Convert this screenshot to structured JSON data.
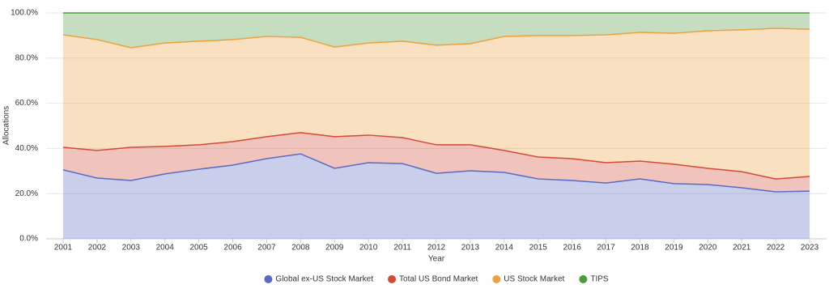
{
  "chart_data": {
    "type": "stacked_area",
    "x_label": "Year",
    "y_label": "Allocations",
    "categories": [
      "2001",
      "2002",
      "2003",
      "2004",
      "2005",
      "2006",
      "2007",
      "2008",
      "2009",
      "2010",
      "2011",
      "2012",
      "2013",
      "2014",
      "2015",
      "2016",
      "2017",
      "2018",
      "2019",
      "2020",
      "2021",
      "2022",
      "2023"
    ],
    "series": [
      {
        "name": "Global ex-US Stock Market",
        "color": "#5a6ac2",
        "values": [
          30.5,
          26.9,
          25.8,
          28.7,
          30.8,
          32.6,
          35.5,
          37.6,
          31.2,
          33.7,
          33.3,
          29.0,
          30.1,
          29.4,
          26.5,
          25.8,
          24.7,
          26.5,
          24.4,
          24.0,
          22.6,
          20.8,
          21.1
        ]
      },
      {
        "name": "Total US Bond Market",
        "color": "#d14b35",
        "values": [
          10.0,
          12.2,
          14.7,
          12.2,
          10.8,
          10.4,
          9.7,
          9.4,
          14.0,
          12.2,
          11.5,
          12.6,
          11.5,
          9.7,
          9.7,
          9.7,
          9.0,
          7.9,
          8.6,
          7.2,
          7.1,
          5.7,
          6.5
        ]
      },
      {
        "name": "US Stock Market",
        "color": "#eba23f",
        "values": [
          49.8,
          49.1,
          44.1,
          45.8,
          45.9,
          45.2,
          44.4,
          42.2,
          39.7,
          40.8,
          42.7,
          44.1,
          44.8,
          50.5,
          53.8,
          54.5,
          56.6,
          57.0,
          58.0,
          60.9,
          62.8,
          66.7,
          65.2
        ]
      },
      {
        "name": "TIPS",
        "color": "#4c9c3c",
        "values": [
          9.7,
          11.8,
          15.4,
          13.3,
          12.5,
          11.8,
          10.4,
          10.8,
          15.1,
          13.3,
          12.5,
          14.3,
          13.6,
          10.4,
          10.0,
          10.0,
          9.7,
          8.6,
          9.0,
          7.9,
          7.5,
          6.8,
          7.2
        ]
      }
    ],
    "ylim": [
      0,
      100
    ],
    "yticks": [
      {
        "value": 0,
        "label": "0.0%"
      },
      {
        "value": 20,
        "label": "20.0%"
      },
      {
        "value": 40,
        "label": "40.0%"
      },
      {
        "value": 60,
        "label": "60.0%"
      },
      {
        "value": 80,
        "label": "80.0%"
      },
      {
        "value": 100,
        "label": "100.0%"
      }
    ],
    "grid": true
  }
}
